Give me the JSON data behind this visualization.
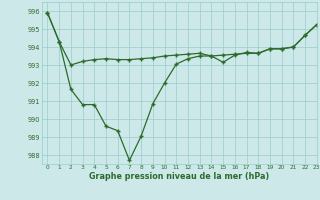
{
  "line1_x": [
    0,
    1,
    2,
    3,
    4,
    5,
    6,
    7,
    8,
    9,
    10,
    11,
    12,
    13,
    14,
    15,
    16,
    17,
    18,
    19,
    20,
    21,
    22,
    23
  ],
  "line1_y": [
    995.9,
    994.3,
    993.0,
    993.2,
    993.3,
    993.35,
    993.3,
    993.3,
    993.35,
    993.4,
    993.5,
    993.55,
    993.6,
    993.65,
    993.5,
    993.55,
    993.6,
    993.65,
    993.65,
    993.9,
    993.9,
    994.0,
    994.65,
    995.25
  ],
  "line2_x": [
    0,
    1,
    2,
    3,
    4,
    5,
    6,
    7,
    8,
    9,
    10,
    11,
    12,
    13,
    14,
    15,
    16,
    17,
    18,
    19,
    20,
    21,
    22,
    23
  ],
  "line2_y": [
    995.9,
    994.3,
    991.65,
    990.8,
    990.8,
    989.6,
    989.35,
    987.7,
    989.05,
    990.85,
    992.0,
    993.05,
    993.35,
    993.5,
    993.5,
    993.15,
    993.55,
    993.7,
    993.65,
    993.9,
    993.9,
    994.0,
    994.65,
    995.25
  ],
  "color": "#2d6b2d",
  "bg_color": "#cce8e8",
  "grid_color": "#99cccc",
  "xlabel": "Graphe pression niveau de la mer (hPa)",
  "ylim": [
    987.5,
    996.5
  ],
  "xlim": [
    -0.5,
    23
  ],
  "yticks": [
    988,
    989,
    990,
    991,
    992,
    993,
    994,
    995,
    996
  ],
  "xticks": [
    0,
    1,
    2,
    3,
    4,
    5,
    6,
    7,
    8,
    9,
    10,
    11,
    12,
    13,
    14,
    15,
    16,
    17,
    18,
    19,
    20,
    21,
    22,
    23
  ]
}
